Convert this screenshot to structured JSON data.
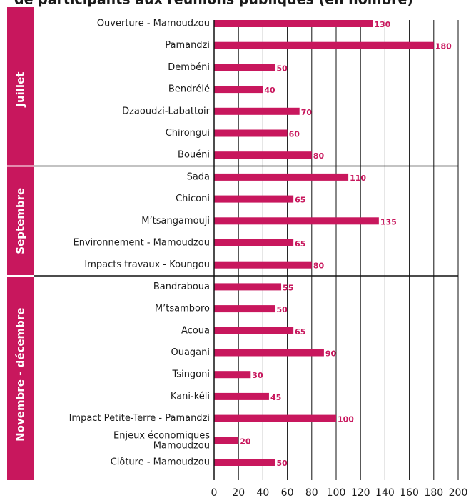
{
  "chart_data": {
    "type": "bar",
    "orientation": "horizontal",
    "title": "de participants aux réunions publiques (en nombre)",
    "color": "#c8175d",
    "groups": [
      {
        "name": "Juillet",
        "categories": [
          "Ouverture - Mamoudzou",
          "Pamandzi",
          "Dembéni",
          "Bendrélé",
          "Dzaoudzi-Labattoir",
          "Chirongui",
          "Bouéni"
        ],
        "values": [
          130,
          180,
          50,
          40,
          70,
          60,
          80
        ]
      },
      {
        "name": "Septembre",
        "categories": [
          "Sada",
          "Chiconi",
          "M’tsangamouji",
          "Environnement - Mamoudzou",
          "Impacts travaux - Koungou"
        ],
        "values": [
          110,
          65,
          135,
          65,
          80
        ]
      },
      {
        "name": "Novembre - décembre",
        "categories": [
          "Bandraboua",
          "M’tsamboro",
          "Acoua",
          "Ouagani",
          "Tsingoni",
          "Kani-kéli",
          "Impact Petite-Terre - Pamandzi",
          "Enjeux économiques\nMamoudzou",
          "Clôture - Mamoudzou"
        ],
        "values": [
          55,
          50,
          65,
          90,
          30,
          45,
          100,
          20,
          50
        ]
      }
    ],
    "xlim": [
      0,
      200
    ],
    "xticks": [
      0,
      20,
      40,
      60,
      80,
      100,
      120,
      140,
      160,
      180,
      200
    ],
    "grid": true
  }
}
